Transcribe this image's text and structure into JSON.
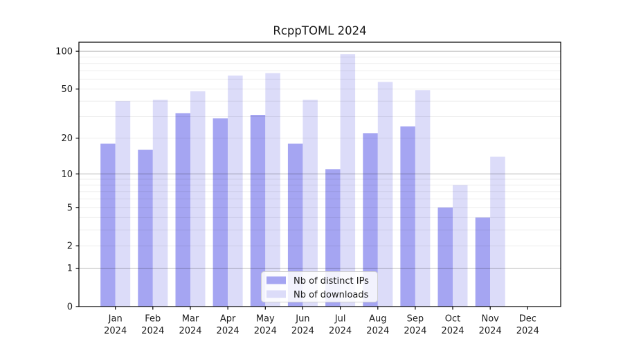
{
  "title": "RcppTOML 2024",
  "colors": {
    "background": "#ffffff",
    "bar_distinct_ips": "#a5a5f2",
    "bar_downloads": "#dcdcf9",
    "grid_major": "rgba(0,0,0,0.28)",
    "grid_minor": "rgba(0,0,0,0.07)",
    "axis": "#000000",
    "text": "#1a1a1a",
    "legend_border": "#d0d0d0",
    "legend_background": "rgba(255,255,255,0.85)"
  },
  "legend": {
    "position": "lower center",
    "entries": [
      "Nb of distinct IPs",
      "Nb of downloads"
    ]
  },
  "y_axis": {
    "tick_labels": [
      "0",
      "1",
      "2",
      "5",
      "10",
      "20",
      "50",
      "100"
    ]
  },
  "chart_data": {
    "type": "bar",
    "title": "RcppTOML 2024",
    "categories": [
      {
        "month": "Jan",
        "year": "2024"
      },
      {
        "month": "Feb",
        "year": "2024"
      },
      {
        "month": "Mar",
        "year": "2024"
      },
      {
        "month": "Apr",
        "year": "2024"
      },
      {
        "month": "May",
        "year": "2024"
      },
      {
        "month": "Jun",
        "year": "2024"
      },
      {
        "month": "Jul",
        "year": "2024"
      },
      {
        "month": "Aug",
        "year": "2024"
      },
      {
        "month": "Sep",
        "year": "2024"
      },
      {
        "month": "Oct",
        "year": "2024"
      },
      {
        "month": "Nov",
        "year": "2024"
      },
      {
        "month": "Dec",
        "year": "2024"
      }
    ],
    "series": [
      {
        "name": "Nb of distinct IPs",
        "color": "#a5a5f2",
        "values": [
          18,
          16,
          32,
          29,
          31,
          18,
          11,
          22,
          25,
          5,
          4,
          0
        ]
      },
      {
        "name": "Nb of downloads",
        "color": "#dcdcf9",
        "values": [
          40,
          41,
          48,
          64,
          67,
          41,
          95,
          57,
          49,
          8,
          14,
          0
        ]
      }
    ],
    "xlabel": "",
    "ylabel": "",
    "yscale": "log1p",
    "yticks": [
      0,
      1,
      2,
      5,
      10,
      20,
      50,
      100
    ],
    "grid_major_values": [
      1,
      10,
      100
    ],
    "grid_minor_values": [
      2,
      3,
      4,
      5,
      6,
      7,
      8,
      9,
      20,
      30,
      40,
      50,
      60,
      70,
      80,
      90
    ],
    "ylim": [
      0,
      118
    ],
    "grid": true,
    "legend_position": "lower center"
  }
}
